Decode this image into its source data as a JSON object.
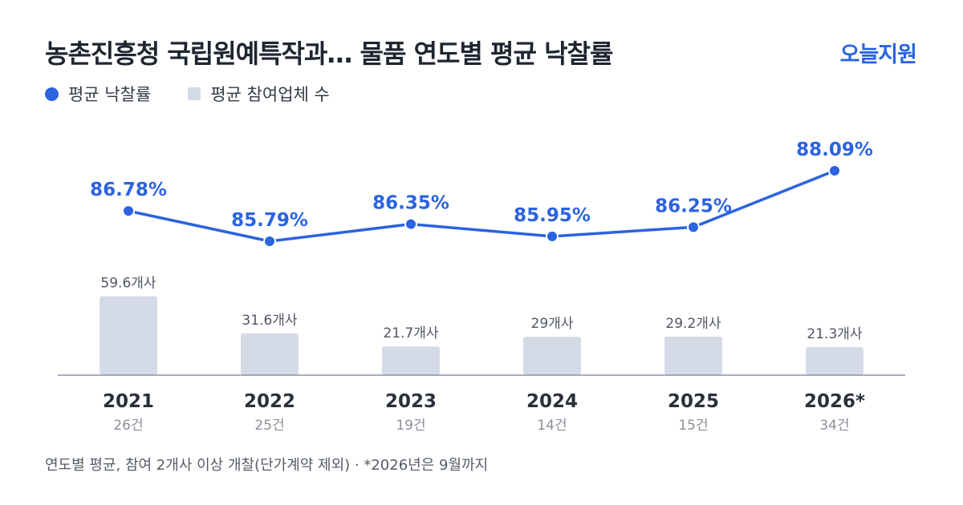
{
  "header": {
    "title": "농촌진흥청 국립원예특작과… 물품 연도별 평균 낙찰률",
    "brand": "오늘지원"
  },
  "legend": {
    "line_label": "평균 낙찰률",
    "bar_label": "평균 참여업체 수"
  },
  "footnote": "연도별 평균, 참여 2개사 이상 개찰(단가계약 제외) · *2026년은 9월까지",
  "colors": {
    "accent": "#2b63e0",
    "bar": "#d5dbe6",
    "axis": "#8c94a3",
    "title": "#1f2530"
  },
  "chart_data": {
    "type": "bar+line",
    "categories": [
      "2021",
      "2022",
      "2023",
      "2024",
      "2025",
      "2026*"
    ],
    "counts": [
      "26건",
      "25건",
      "19건",
      "14건",
      "15건",
      "34건"
    ],
    "series": [
      {
        "name": "평균 낙찰률",
        "type": "line",
        "values": [
          86.78,
          85.79,
          86.35,
          85.95,
          86.25,
          88.09
        ],
        "labels": [
          "86.78%",
          "85.79%",
          "86.35%",
          "85.95%",
          "86.25%",
          "88.09%"
        ]
      },
      {
        "name": "평균 참여업체 수",
        "type": "bar",
        "values": [
          59.6,
          31.6,
          21.7,
          29,
          29.2,
          21.3
        ],
        "labels": [
          "59.6개사",
          "31.6개사",
          "21.7개사",
          "29개사",
          "29.2개사",
          "21.3개사"
        ]
      }
    ]
  }
}
